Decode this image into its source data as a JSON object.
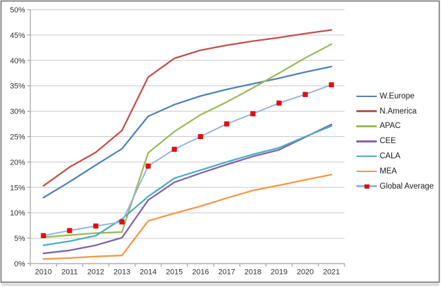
{
  "chart_data": {
    "type": "line",
    "title": "",
    "xlabel": "",
    "ylabel": "",
    "x": [
      "2010",
      "2011",
      "2012",
      "2013",
      "2014",
      "2015",
      "2016",
      "2017",
      "2018",
      "2019",
      "2020",
      "2021"
    ],
    "ylim": [
      0,
      50
    ],
    "y_tick_step": 5,
    "y_tick_labels": [
      "0%",
      "5%",
      "10%",
      "15%",
      "20%",
      "25%",
      "30%",
      "35%",
      "40%",
      "45%",
      "50%"
    ],
    "grid": true,
    "legend_position": "right",
    "series": [
      {
        "name": "W.Europe",
        "color": "#4F81BD",
        "values": [
          13.0,
          16.1,
          19.4,
          22.6,
          29.0,
          31.3,
          33.0,
          34.3,
          35.4,
          36.5,
          37.7,
          38.8
        ]
      },
      {
        "name": "N.America",
        "color": "#C0504D",
        "values": [
          15.3,
          19.0,
          21.9,
          26.2,
          36.7,
          40.4,
          42.0,
          43.0,
          43.8,
          44.5,
          45.3,
          46.0
        ]
      },
      {
        "name": "APAC",
        "color": "#9BBB59",
        "values": [
          5.2,
          5.6,
          6.0,
          6.2,
          21.8,
          26.0,
          29.3,
          31.8,
          34.6,
          37.5,
          40.5,
          43.2
        ]
      },
      {
        "name": "CEE",
        "color": "#8064A2",
        "values": [
          2.0,
          2.6,
          3.6,
          5.1,
          12.5,
          16.0,
          17.8,
          19.5,
          21.1,
          22.4,
          24.9,
          27.4
        ]
      },
      {
        "name": "CALA",
        "color": "#4BACC6",
        "values": [
          3.6,
          4.4,
          5.5,
          8.8,
          13.2,
          16.8,
          18.4,
          20.0,
          21.5,
          22.8,
          25.0,
          27.1
        ]
      },
      {
        "name": "MEA",
        "color": "#F79646",
        "values": [
          0.9,
          1.1,
          1.4,
          1.6,
          8.4,
          9.9,
          11.3,
          12.9,
          14.4,
          15.4,
          16.5,
          17.5
        ]
      },
      {
        "name": "Global Average",
        "color": "#95B3D7",
        "marker": {
          "shape": "square",
          "fill": "#FE0000",
          "border": "#B40000"
        },
        "values": [
          5.5,
          6.5,
          7.4,
          8.2,
          19.2,
          22.5,
          25.0,
          27.5,
          29.5,
          31.6,
          33.3,
          35.2
        ]
      }
    ]
  },
  "style": {
    "background": "#FFFFFF",
    "frame_border": "#6E7275",
    "bottom_strip": "#DBDBDB",
    "gridline": "#C9C9C9",
    "axis": "#A0A0A0",
    "tick_label_color": "#303030",
    "legend_text_color": "#1B1B1B"
  }
}
